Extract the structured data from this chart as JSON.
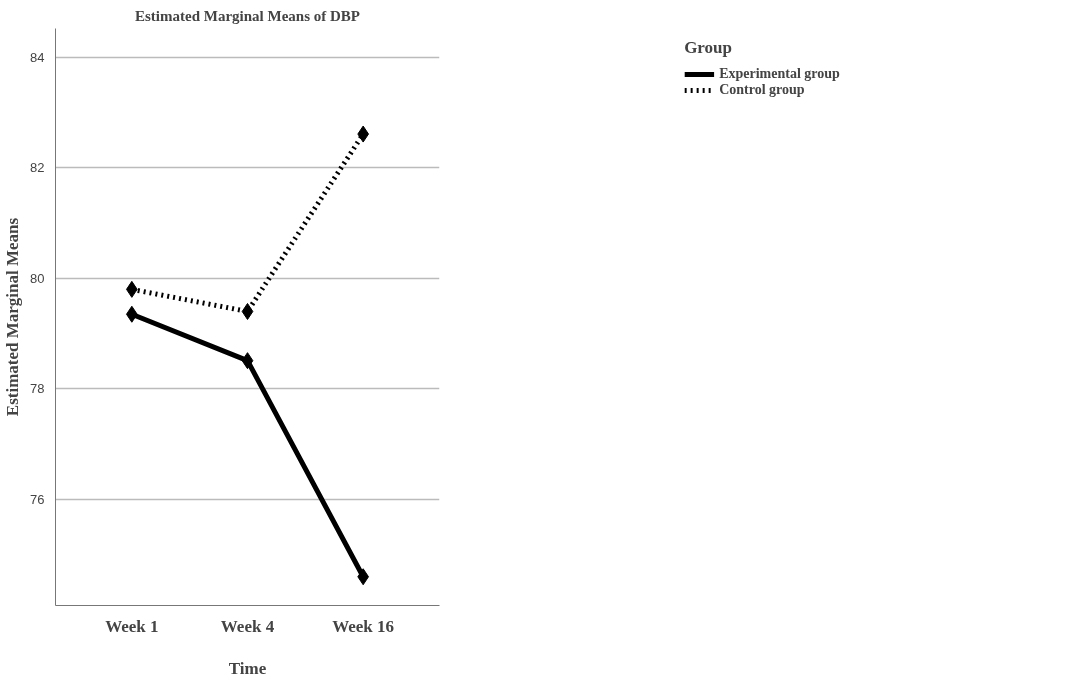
{
  "chart_data": {
    "type": "line",
    "title": "Estimated Marginal Means of DBP",
    "xlabel": "Time",
    "ylabel": "Estimated Marginal Means",
    "legend_title": "Group",
    "categories": [
      "Week 1",
      "Week 4",
      "Week 16"
    ],
    "series": [
      {
        "name": "Experimental group",
        "color": "#000000",
        "line_style": "solid",
        "values": [
          79.35,
          78.51,
          74.6
        ]
      },
      {
        "name": "Control group",
        "color": "#000000",
        "line_style": "dotted",
        "values": [
          79.8,
          79.4,
          82.61
        ]
      }
    ],
    "ylim": [
      74.08,
      84.52
    ],
    "yticks": [
      76,
      78,
      80,
      82,
      84
    ],
    "grid": "y",
    "legend": "top right",
    "marker": "diamond"
  }
}
